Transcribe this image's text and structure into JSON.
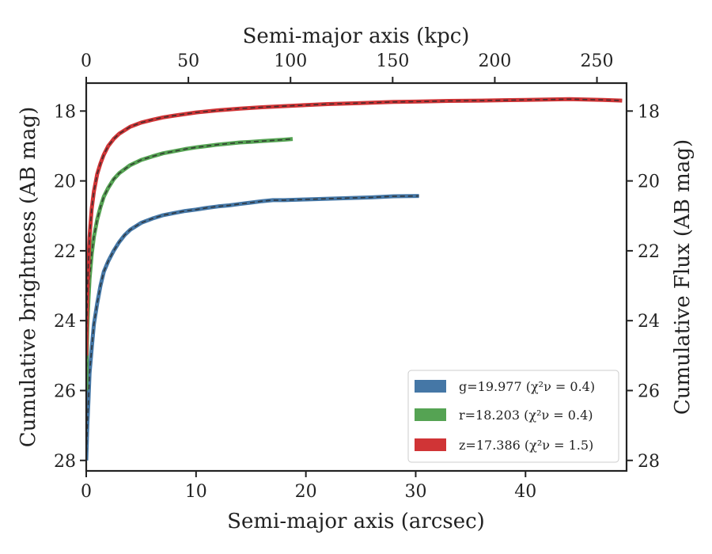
{
  "chart_data": {
    "type": "line",
    "title": "",
    "xlabel": "Semi-major axis (arcsec)",
    "ylabel": "Cumulative brightness (AB mag)",
    "top_xlabel": "Semi-major axis (kpc)",
    "right_ylabel": "Cumulative Flux (AB mag)",
    "xlim": [
      0,
      49.2
    ],
    "ylim": [
      28.3,
      17.2
    ],
    "y_inverted": true,
    "top_xlim": [
      0,
      264.5
    ],
    "x_ticks": [
      0,
      10,
      20,
      30,
      40
    ],
    "y_ticks": [
      18,
      20,
      22,
      24,
      26,
      28
    ],
    "top_x_ticks": [
      0,
      50,
      100,
      150,
      200,
      250
    ],
    "grid": false,
    "legend_position": "lower-right",
    "series": [
      {
        "name": "g",
        "legend_label": "g=19.977",
        "legend_chi": "(χ²ν = 0.4)",
        "color": "#4577a6",
        "x": [
          0.0,
          0.1,
          0.2,
          0.3,
          0.5,
          0.7,
          1.0,
          1.3,
          1.6,
          2.0,
          2.5,
          3.0,
          3.5,
          4.0,
          5.0,
          6.0,
          7.0,
          8.0,
          9.0,
          10.0,
          11.0,
          12.0,
          13.0,
          14.0,
          15.0,
          16.0,
          17.0,
          18.0,
          20.0,
          22.0,
          24.0,
          26.0,
          28.0,
          30.3
        ],
        "y": [
          28.0,
          27.0,
          26.3,
          25.5,
          24.8,
          24.1,
          23.5,
          23.0,
          22.6,
          22.3,
          22.0,
          21.75,
          21.55,
          21.4,
          21.2,
          21.08,
          20.98,
          20.92,
          20.86,
          20.82,
          20.77,
          20.73,
          20.7,
          20.66,
          20.62,
          20.58,
          20.55,
          20.55,
          20.53,
          20.51,
          20.49,
          20.47,
          20.44,
          20.43
        ]
      },
      {
        "name": "r",
        "legend_label": "r=18.203",
        "legend_chi": "(χ²ν = 0.4)",
        "color": "#55a353",
        "x": [
          0.0,
          0.05,
          0.1,
          0.2,
          0.3,
          0.5,
          0.7,
          1.0,
          1.3,
          1.6,
          2.0,
          2.5,
          3.0,
          4.0,
          5.0,
          6.0,
          7.0,
          8.0,
          9.0,
          10.0,
          11.0,
          12.0,
          13.0,
          14.0,
          15.0,
          16.0,
          17.0,
          18.0,
          18.8
        ],
        "y": [
          26.0,
          25.0,
          24.2,
          23.4,
          22.8,
          22.1,
          21.6,
          21.1,
          20.75,
          20.45,
          20.2,
          19.95,
          19.78,
          19.55,
          19.4,
          19.3,
          19.21,
          19.15,
          19.09,
          19.04,
          19.0,
          18.96,
          18.93,
          18.9,
          18.88,
          18.86,
          18.84,
          18.82,
          18.8
        ]
      },
      {
        "name": "z",
        "legend_label": "z=17.386",
        "legend_chi": "(χ²ν = 1.5)",
        "color": "#d03436",
        "x": [
          0.0,
          0.05,
          0.1,
          0.2,
          0.3,
          0.5,
          0.7,
          1.0,
          1.3,
          1.6,
          2.0,
          2.5,
          3.0,
          4.0,
          5.0,
          6.0,
          7.0,
          8.0,
          10.0,
          12.0,
          14.0,
          16.0,
          18.0,
          20.0,
          22.0,
          25.0,
          28.0,
          30.0,
          33.0,
          36.0,
          40.0,
          44.0,
          47.0,
          48.8
        ],
        "y": [
          25.0,
          24.0,
          23.2,
          22.3,
          21.6,
          20.8,
          20.3,
          19.8,
          19.5,
          19.25,
          19.0,
          18.8,
          18.65,
          18.45,
          18.33,
          18.25,
          18.18,
          18.13,
          18.04,
          17.98,
          17.93,
          17.89,
          17.86,
          17.83,
          17.8,
          17.77,
          17.74,
          17.73,
          17.71,
          17.7,
          17.68,
          17.66,
          17.68,
          17.7
        ]
      }
    ]
  }
}
